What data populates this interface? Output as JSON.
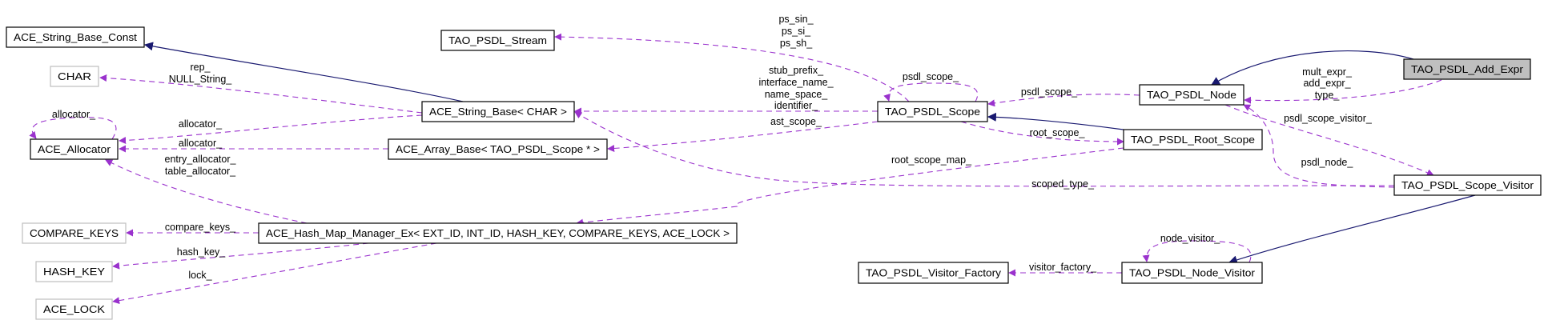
{
  "diagram": {
    "colors": {
      "usage_edge": "#9a32cd",
      "inheritance_edge": "#191970",
      "highlighted_fill": "#bfbfbf",
      "external_border": "#bfbfbf"
    },
    "nodes": [
      {
        "id": "string_base_const",
        "label": "ACE_String_Base_Const"
      },
      {
        "id": "stream",
        "label": "TAO_PSDL_Stream"
      },
      {
        "id": "char",
        "label": "CHAR",
        "style": "external"
      },
      {
        "id": "string_base",
        "label": "ACE_String_Base< CHAR >"
      },
      {
        "id": "allocator",
        "label": "ACE_Allocator"
      },
      {
        "id": "array_base",
        "label": "ACE_Array_Base< TAO_PSDL_Scope * >"
      },
      {
        "id": "compare_keys",
        "label": "COMPARE_KEYS",
        "style": "external"
      },
      {
        "id": "hash_map",
        "label": "ACE_Hash_Map_Manager_Ex< EXT_ID, INT_ID, HASH_KEY, COMPARE_KEYS, ACE_LOCK >"
      },
      {
        "id": "hash_key",
        "label": "HASH_KEY",
        "style": "external"
      },
      {
        "id": "ace_lock",
        "label": "ACE_LOCK",
        "style": "external"
      },
      {
        "id": "scope",
        "label": "TAO_PSDL_Scope"
      },
      {
        "id": "node",
        "label": "TAO_PSDL_Node"
      },
      {
        "id": "add_expr",
        "label": "TAO_PSDL_Add_Expr",
        "style": "highlighted"
      },
      {
        "id": "root_scope",
        "label": "TAO_PSDL_Root_Scope"
      },
      {
        "id": "scope_visitor",
        "label": "TAO_PSDL_Scope_Visitor"
      },
      {
        "id": "visitor_factory",
        "label": "TAO_PSDL_Visitor_Factory"
      },
      {
        "id": "node_visitor",
        "label": "TAO_PSDL_Node_Visitor"
      }
    ],
    "edges": [
      {
        "from": "string_base",
        "to": "string_base_const",
        "type": "inheritance",
        "labels": []
      },
      {
        "from": "string_base",
        "to": "char",
        "type": "usage",
        "labels": [
          "rep_",
          "NULL_String_"
        ]
      },
      {
        "from": "string_base",
        "to": "allocator",
        "type": "usage",
        "labels": [
          "allocator_"
        ]
      },
      {
        "from": "array_base",
        "to": "allocator",
        "type": "usage",
        "labels": [
          "allocator_"
        ]
      },
      {
        "from": "allocator",
        "to": "allocator",
        "type": "usage",
        "labels": [
          "allocator_"
        ]
      },
      {
        "from": "hash_map",
        "to": "allocator",
        "type": "usage",
        "labels": [
          "entry_allocator_",
          "table_allocator_"
        ]
      },
      {
        "from": "hash_map",
        "to": "compare_keys",
        "type": "usage",
        "labels": [
          "compare_keys_"
        ]
      },
      {
        "from": "hash_map",
        "to": "hash_key",
        "type": "usage",
        "labels": [
          "hash_key_"
        ]
      },
      {
        "from": "hash_map",
        "to": "ace_lock",
        "type": "usage",
        "labels": [
          "lock_"
        ]
      },
      {
        "from": "scope",
        "to": "stream",
        "type": "usage",
        "labels": [
          "ps_sin_",
          "ps_si_",
          "ps_sh_"
        ]
      },
      {
        "from": "scope",
        "to": "string_base",
        "type": "usage",
        "labels": [
          "stub_prefix_",
          "interface_name_",
          "name_space_",
          "identifier_"
        ]
      },
      {
        "from": "scope",
        "to": "array_base",
        "type": "usage",
        "labels": [
          "ast_scope_"
        ]
      },
      {
        "from": "scope",
        "to": "scope",
        "type": "usage",
        "labels": [
          "psdl_scope_"
        ]
      },
      {
        "from": "root_scope",
        "to": "scope",
        "type": "inheritance",
        "labels": []
      },
      {
        "from": "scope",
        "to": "root_scope",
        "type": "usage",
        "labels": [
          "root_scope_"
        ]
      },
      {
        "from": "root_scope",
        "to": "hash_map",
        "type": "usage",
        "labels": [
          "root_scope_map_"
        ]
      },
      {
        "from": "node",
        "to": "scope",
        "type": "usage",
        "labels": [
          "psdl_scope_"
        ]
      },
      {
        "from": "add_expr",
        "to": "node",
        "type": "inheritance",
        "labels": []
      },
      {
        "from": "add_expr",
        "to": "node",
        "type": "usage",
        "labels": [
          "mult_expr_",
          "add_expr_",
          "type_"
        ]
      },
      {
        "from": "node",
        "to": "scope_visitor",
        "type": "usage",
        "labels": [
          "psdl_scope_visitor_"
        ]
      },
      {
        "from": "scope_visitor",
        "to": "node",
        "type": "usage",
        "labels": [
          "psdl_node_"
        ]
      },
      {
        "from": "scope_visitor",
        "to": "string_base",
        "type": "usage",
        "labels": [
          "scoped_type_"
        ]
      },
      {
        "from": "scope_visitor",
        "to": "node_visitor",
        "type": "inheritance",
        "labels": []
      },
      {
        "from": "node_visitor",
        "to": "node_visitor",
        "type": "usage",
        "labels": [
          "node_visitor_"
        ]
      },
      {
        "from": "node_visitor",
        "to": "visitor_factory",
        "type": "usage",
        "labels": [
          "visitor_factory_"
        ]
      }
    ]
  }
}
